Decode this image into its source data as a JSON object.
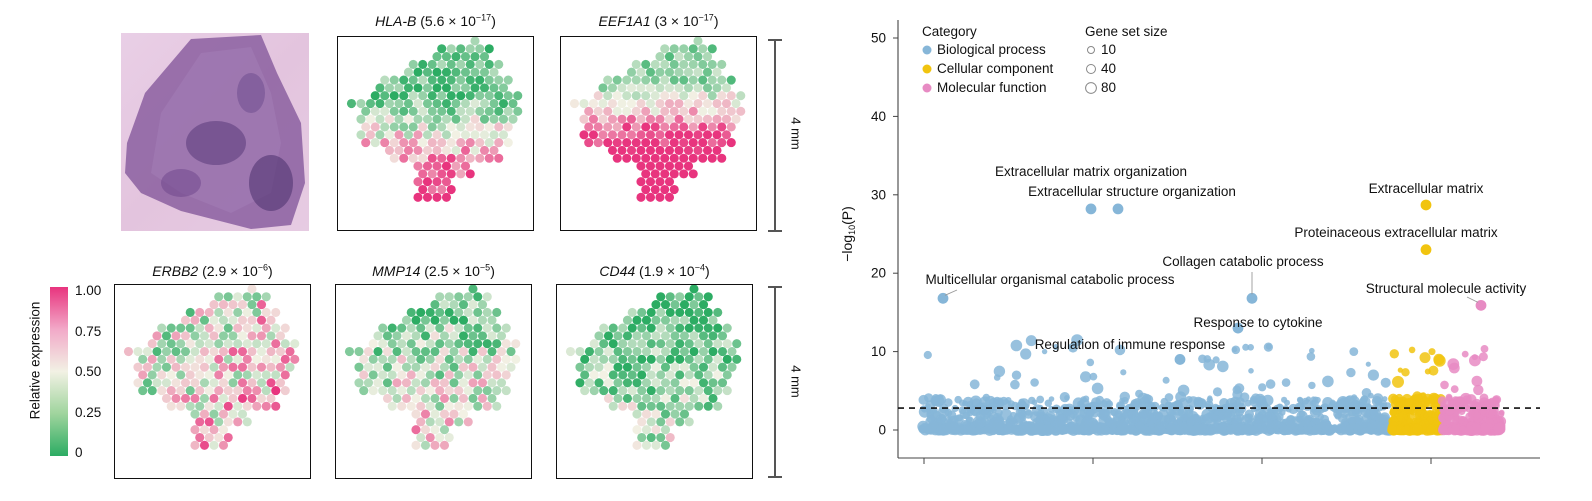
{
  "spatial_panels": [
    {
      "gene": "HLA-B",
      "p_value": "(5.6 × 10",
      "exp": "−17",
      "tail": ")",
      "pattern": "bottom"
    },
    {
      "gene": "EEF1A1",
      "p_value": "(3 × 10",
      "exp": "−17",
      "tail": ")",
      "pattern": "bottom-strong"
    },
    {
      "gene": "ERBB2",
      "p_value": "(2.9 × 10",
      "exp": "−6",
      "tail": ")",
      "pattern": "right"
    },
    {
      "gene": "MMP14",
      "p_value": "(2.5 × 10",
      "exp": "−5",
      "tail": ")",
      "pattern": "lower"
    },
    {
      "gene": "CD44",
      "p_value": "(1.9 × 10",
      "exp": "−4",
      "tail": ")",
      "pattern": "low"
    }
  ],
  "scale_bar_label": "4 mm",
  "colorbar": {
    "label": "Relative expression",
    "ticks": [
      "1.00",
      "0.75",
      "0.50",
      "0.25",
      "0"
    ],
    "colors": {
      "low": "#2cac63",
      "mid": "#f2f1e4",
      "high": "#e8347e"
    }
  },
  "chart_data": {
    "type": "scatter",
    "ylabel_main": "−log",
    "ylabel_sub": "10",
    "ylabel_tail": "(P)",
    "ylim": [
      0,
      50
    ],
    "yticks": [
      "0",
      "10",
      "20",
      "30",
      "40",
      "50"
    ],
    "threshold": 2.8,
    "legend": {
      "category_title": "Category",
      "categories": [
        {
          "name": "Biological process",
          "color": "#86b6d8"
        },
        {
          "name": "Cellular component",
          "color": "#f1c40f"
        },
        {
          "name": "Molecular function",
          "color": "#e78bc3"
        }
      ],
      "size_title": "Gene set size",
      "sizes": [
        "10",
        "40",
        "80"
      ]
    },
    "labeled_points": [
      {
        "label": "Extracellular matrix organization",
        "category": "Biological process",
        "y": 28.2
      },
      {
        "label": "Extracellular structure organization",
        "category": "Biological process",
        "y": 28.2
      },
      {
        "label": "Extracellular matrix",
        "category": "Cellular component",
        "y": 28.7
      },
      {
        "label": "Proteinaceous extracellular matrix",
        "category": "Cellular component",
        "y": 23
      },
      {
        "label": "Collagen catabolic process",
        "category": "Biological process",
        "y": 16.8
      },
      {
        "label": "Structural molecule activity",
        "category": "Molecular function",
        "y": 15.9
      },
      {
        "label": "Multicellular organismal catabolic process",
        "category": "Biological process",
        "y": 16.8
      },
      {
        "label": "Response to cytokine",
        "category": "Biological process",
        "y": 13
      },
      {
        "label": "Regulation of immune response",
        "category": "Biological process",
        "y": 9
      }
    ]
  }
}
